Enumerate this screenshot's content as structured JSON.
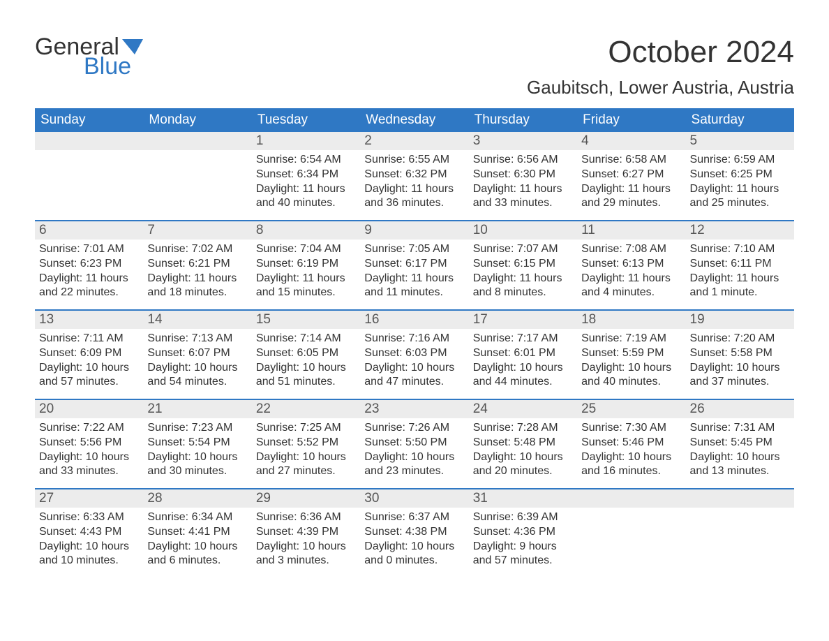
{
  "colors": {
    "header_bg": "#2f78c4",
    "header_text": "#ffffff",
    "daynum_bg": "#ececec",
    "daynum_text": "#555555",
    "body_text": "#333333",
    "week_border": "#2f78c4",
    "page_bg": "#ffffff",
    "logo_blue": "#2f78c4"
  },
  "logo": {
    "word1": "General",
    "word2": "Blue"
  },
  "title": "October 2024",
  "location": "Gaubitsch, Lower Austria, Austria",
  "day_headers": [
    "Sunday",
    "Monday",
    "Tuesday",
    "Wednesday",
    "Thursday",
    "Friday",
    "Saturday"
  ],
  "weeks": [
    [
      null,
      null,
      {
        "n": "1",
        "sunrise": "Sunrise: 6:54 AM",
        "sunset": "Sunset: 6:34 PM",
        "daylight": "Daylight: 11 hours and 40 minutes."
      },
      {
        "n": "2",
        "sunrise": "Sunrise: 6:55 AM",
        "sunset": "Sunset: 6:32 PM",
        "daylight": "Daylight: 11 hours and 36 minutes."
      },
      {
        "n": "3",
        "sunrise": "Sunrise: 6:56 AM",
        "sunset": "Sunset: 6:30 PM",
        "daylight": "Daylight: 11 hours and 33 minutes."
      },
      {
        "n": "4",
        "sunrise": "Sunrise: 6:58 AM",
        "sunset": "Sunset: 6:27 PM",
        "daylight": "Daylight: 11 hours and 29 minutes."
      },
      {
        "n": "5",
        "sunrise": "Sunrise: 6:59 AM",
        "sunset": "Sunset: 6:25 PM",
        "daylight": "Daylight: 11 hours and 25 minutes."
      }
    ],
    [
      {
        "n": "6",
        "sunrise": "Sunrise: 7:01 AM",
        "sunset": "Sunset: 6:23 PM",
        "daylight": "Daylight: 11 hours and 22 minutes."
      },
      {
        "n": "7",
        "sunrise": "Sunrise: 7:02 AM",
        "sunset": "Sunset: 6:21 PM",
        "daylight": "Daylight: 11 hours and 18 minutes."
      },
      {
        "n": "8",
        "sunrise": "Sunrise: 7:04 AM",
        "sunset": "Sunset: 6:19 PM",
        "daylight": "Daylight: 11 hours and 15 minutes."
      },
      {
        "n": "9",
        "sunrise": "Sunrise: 7:05 AM",
        "sunset": "Sunset: 6:17 PM",
        "daylight": "Daylight: 11 hours and 11 minutes."
      },
      {
        "n": "10",
        "sunrise": "Sunrise: 7:07 AM",
        "sunset": "Sunset: 6:15 PM",
        "daylight": "Daylight: 11 hours and 8 minutes."
      },
      {
        "n": "11",
        "sunrise": "Sunrise: 7:08 AM",
        "sunset": "Sunset: 6:13 PM",
        "daylight": "Daylight: 11 hours and 4 minutes."
      },
      {
        "n": "12",
        "sunrise": "Sunrise: 7:10 AM",
        "sunset": "Sunset: 6:11 PM",
        "daylight": "Daylight: 11 hours and 1 minute."
      }
    ],
    [
      {
        "n": "13",
        "sunrise": "Sunrise: 7:11 AM",
        "sunset": "Sunset: 6:09 PM",
        "daylight": "Daylight: 10 hours and 57 minutes."
      },
      {
        "n": "14",
        "sunrise": "Sunrise: 7:13 AM",
        "sunset": "Sunset: 6:07 PM",
        "daylight": "Daylight: 10 hours and 54 minutes."
      },
      {
        "n": "15",
        "sunrise": "Sunrise: 7:14 AM",
        "sunset": "Sunset: 6:05 PM",
        "daylight": "Daylight: 10 hours and 51 minutes."
      },
      {
        "n": "16",
        "sunrise": "Sunrise: 7:16 AM",
        "sunset": "Sunset: 6:03 PM",
        "daylight": "Daylight: 10 hours and 47 minutes."
      },
      {
        "n": "17",
        "sunrise": "Sunrise: 7:17 AM",
        "sunset": "Sunset: 6:01 PM",
        "daylight": "Daylight: 10 hours and 44 minutes."
      },
      {
        "n": "18",
        "sunrise": "Sunrise: 7:19 AM",
        "sunset": "Sunset: 5:59 PM",
        "daylight": "Daylight: 10 hours and 40 minutes."
      },
      {
        "n": "19",
        "sunrise": "Sunrise: 7:20 AM",
        "sunset": "Sunset: 5:58 PM",
        "daylight": "Daylight: 10 hours and 37 minutes."
      }
    ],
    [
      {
        "n": "20",
        "sunrise": "Sunrise: 7:22 AM",
        "sunset": "Sunset: 5:56 PM",
        "daylight": "Daylight: 10 hours and 33 minutes."
      },
      {
        "n": "21",
        "sunrise": "Sunrise: 7:23 AM",
        "sunset": "Sunset: 5:54 PM",
        "daylight": "Daylight: 10 hours and 30 minutes."
      },
      {
        "n": "22",
        "sunrise": "Sunrise: 7:25 AM",
        "sunset": "Sunset: 5:52 PM",
        "daylight": "Daylight: 10 hours and 27 minutes."
      },
      {
        "n": "23",
        "sunrise": "Sunrise: 7:26 AM",
        "sunset": "Sunset: 5:50 PM",
        "daylight": "Daylight: 10 hours and 23 minutes."
      },
      {
        "n": "24",
        "sunrise": "Sunrise: 7:28 AM",
        "sunset": "Sunset: 5:48 PM",
        "daylight": "Daylight: 10 hours and 20 minutes."
      },
      {
        "n": "25",
        "sunrise": "Sunrise: 7:30 AM",
        "sunset": "Sunset: 5:46 PM",
        "daylight": "Daylight: 10 hours and 16 minutes."
      },
      {
        "n": "26",
        "sunrise": "Sunrise: 7:31 AM",
        "sunset": "Sunset: 5:45 PM",
        "daylight": "Daylight: 10 hours and 13 minutes."
      }
    ],
    [
      {
        "n": "27",
        "sunrise": "Sunrise: 6:33 AM",
        "sunset": "Sunset: 4:43 PM",
        "daylight": "Daylight: 10 hours and 10 minutes."
      },
      {
        "n": "28",
        "sunrise": "Sunrise: 6:34 AM",
        "sunset": "Sunset: 4:41 PM",
        "daylight": "Daylight: 10 hours and 6 minutes."
      },
      {
        "n": "29",
        "sunrise": "Sunrise: 6:36 AM",
        "sunset": "Sunset: 4:39 PM",
        "daylight": "Daylight: 10 hours and 3 minutes."
      },
      {
        "n": "30",
        "sunrise": "Sunrise: 6:37 AM",
        "sunset": "Sunset: 4:38 PM",
        "daylight": "Daylight: 10 hours and 0 minutes."
      },
      {
        "n": "31",
        "sunrise": "Sunrise: 6:39 AM",
        "sunset": "Sunset: 4:36 PM",
        "daylight": "Daylight: 9 hours and 57 minutes."
      },
      null,
      null
    ]
  ]
}
